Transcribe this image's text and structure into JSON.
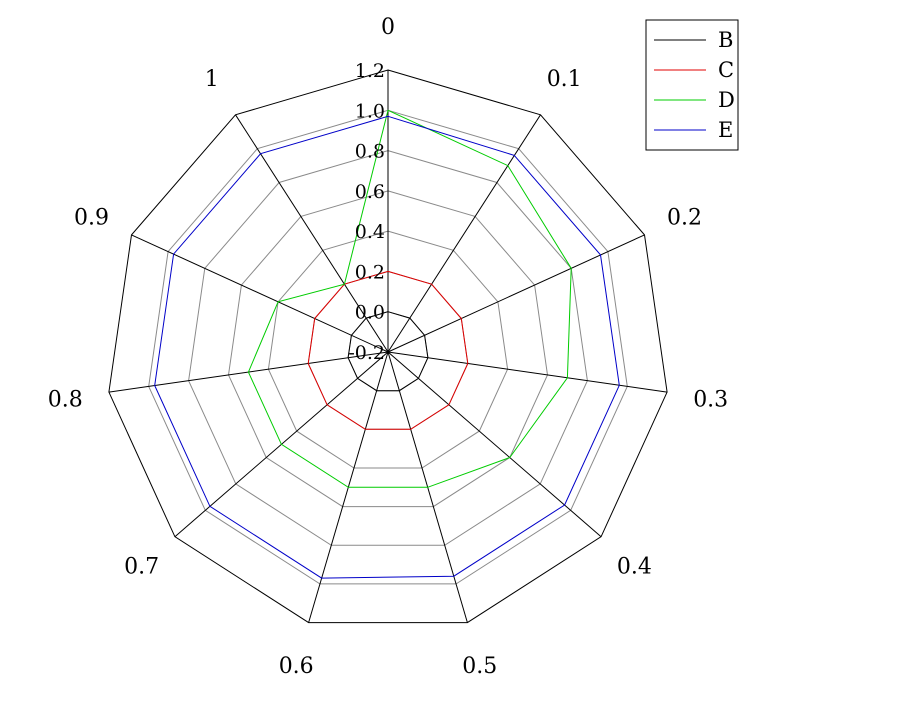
{
  "chart_data": {
    "type": "radar",
    "categories": [
      "0",
      "0.1",
      "0.2",
      "0.3",
      "0.4",
      "0.5",
      "0.6",
      "0.7",
      "0.8",
      "0.9",
      "1"
    ],
    "rlim": [
      -0.2,
      1.2
    ],
    "rticks": [
      -0.2,
      0,
      0.2,
      0.4,
      0.6,
      0.8,
      1.0,
      1.2
    ],
    "rtick_labels": [
      "-0.2",
      "0.0",
      "0.2",
      "0.4",
      "0.6",
      "0.8",
      "1.0",
      "1.2"
    ],
    "grid": true,
    "legend_position": "top-right",
    "series": [
      {
        "name": "B",
        "color": "#000000",
        "values": [
          0,
          0,
          0,
          0,
          0,
          0,
          0,
          0,
          0,
          0,
          0
        ]
      },
      {
        "name": "C",
        "color": "#e00000",
        "values": [
          0.2,
          0.2,
          0.2,
          0.2,
          0.2,
          0.2,
          0.2,
          0.2,
          0.2,
          0.2,
          0.2
        ]
      },
      {
        "name": "D",
        "color": "#00cc00",
        "values": [
          1.0,
          0.9,
          0.8,
          0.7,
          0.6,
          0.5,
          0.5,
          0.5,
          0.5,
          0.4,
          0.2
        ]
      },
      {
        "name": "E",
        "color": "#0000c8",
        "values": [
          0.97,
          0.96,
          0.96,
          0.96,
          0.96,
          0.96,
          0.97,
          0.97,
          0.97,
          0.97,
          0.97
        ]
      }
    ]
  }
}
